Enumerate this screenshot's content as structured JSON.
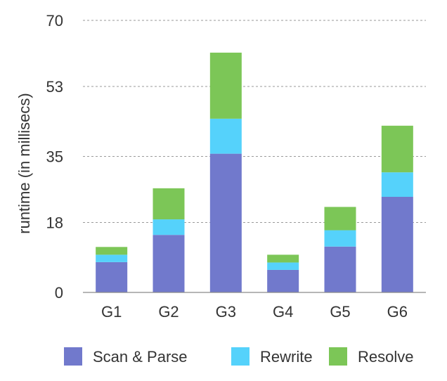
{
  "chart_data": {
    "type": "bar",
    "stacked": true,
    "title": "",
    "xlabel": "",
    "ylabel": "runtime (in millisecs)",
    "ylim": [
      0,
      70
    ],
    "yticks": [
      "0",
      "18",
      "35",
      "53",
      "70"
    ],
    "categories": [
      "G1",
      "G2",
      "G3",
      "G4",
      "G5",
      "G6"
    ],
    "series": [
      {
        "name": "Scan & Parse",
        "color": "#7179cc",
        "values": [
          7.8,
          14.8,
          35.7,
          5.8,
          11.8,
          24.6
        ]
      },
      {
        "name": "Rewrite",
        "color": "#55d2fb",
        "values": [
          1.9,
          4.0,
          9.0,
          1.9,
          4.2,
          6.3
        ]
      },
      {
        "name": "Resolve",
        "color": "#7cc657",
        "values": [
          2.0,
          8.0,
          17.0,
          2.0,
          6.0,
          12.0
        ]
      }
    ],
    "grid": true,
    "legend": "bottom"
  }
}
